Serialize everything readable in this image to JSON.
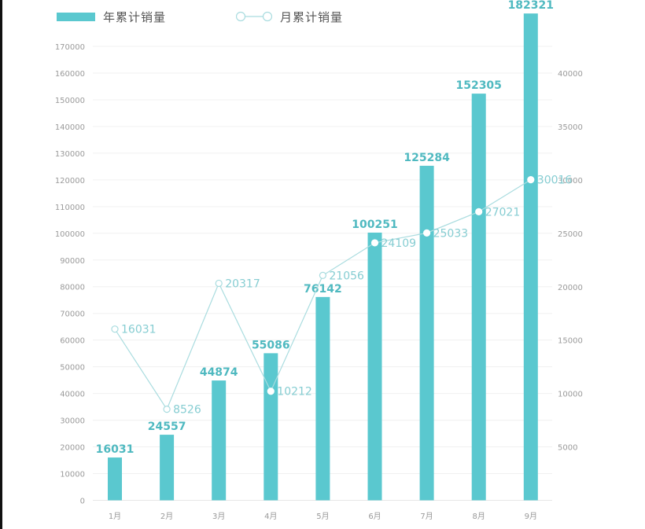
{
  "legend": {
    "bar_label": "年累计销量",
    "line_label": "月累计销量"
  },
  "colors": {
    "bar": "#5ac8cf",
    "bar_label": "#4fb9c0",
    "line": "#a9dcdf",
    "line_label": "#86cdd2",
    "axis_text": "#9a9a9a",
    "grid": "#f0f0f0"
  },
  "chart_data": {
    "type": "bar+line",
    "title": "",
    "xlabel": "",
    "ylabel": "",
    "categories": [
      "1月",
      "2月",
      "3月",
      "4月",
      "5月",
      "6月",
      "7月",
      "8月",
      "9月"
    ],
    "series": [
      {
        "name": "年累计销量",
        "type": "bar",
        "axis": "left",
        "values": [
          16031,
          24557,
          44874,
          55086,
          76142,
          100251,
          125284,
          152305,
          182321
        ]
      },
      {
        "name": "月累计销量",
        "type": "line",
        "axis": "right",
        "values": [
          16031,
          8526,
          20317,
          10212,
          21056,
          24109,
          25033,
          27021,
          30016
        ]
      }
    ],
    "left_axis": {
      "ylim": [
        0,
        170000
      ],
      "ticks": [
        0,
        10000,
        20000,
        30000,
        40000,
        50000,
        60000,
        70000,
        80000,
        90000,
        100000,
        110000,
        120000,
        130000,
        140000,
        150000,
        160000,
        170000
      ]
    },
    "right_axis": {
      "ylim": [
        0,
        40000
      ],
      "ticks": [
        5000,
        10000,
        15000,
        20000,
        25000,
        30000,
        35000,
        40000
      ]
    },
    "grid": true,
    "legend_position": "top"
  }
}
